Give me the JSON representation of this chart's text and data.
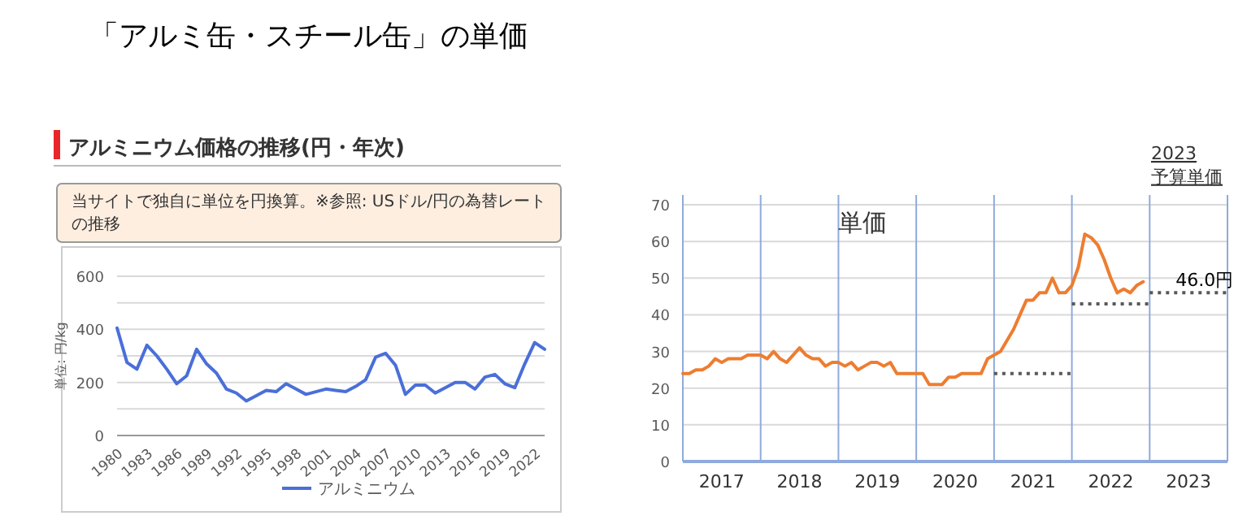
{
  "chart_data": [
    {
      "type": "line",
      "title": "アルミニウム価格の推移(円・年次)",
      "ylabel": "単位: 円/kg",
      "annotations": [
        "「アルミ缶・スチール缶」の単価",
        "当サイトで独自に単位を円換算。※参照: USドル/円の為替レートの推移"
      ],
      "x": [
        1980,
        1981,
        1982,
        1983,
        1984,
        1985,
        1986,
        1987,
        1988,
        1989,
        1990,
        1991,
        1992,
        1993,
        1994,
        1995,
        1996,
        1997,
        1998,
        1999,
        2000,
        2001,
        2002,
        2003,
        2004,
        2005,
        2006,
        2007,
        2008,
        2009,
        2010,
        2011,
        2012,
        2013,
        2014,
        2015,
        2016,
        2017,
        2018,
        2019,
        2020,
        2021,
        2022,
        2023
      ],
      "series": [
        {
          "name": "アルミニウム",
          "color": "#4a6fd8",
          "values": [
            405,
            275,
            250,
            340,
            300,
            250,
            195,
            225,
            325,
            270,
            235,
            175,
            160,
            130,
            150,
            170,
            165,
            195,
            175,
            155,
            165,
            175,
            170,
            165,
            185,
            210,
            295,
            310,
            265,
            155,
            190,
            190,
            160,
            180,
            200,
            200,
            175,
            220,
            230,
            195,
            180,
            270,
            350,
            325
          ]
        }
      ],
      "xlim": [
        1980,
        2023
      ],
      "xticks": [
        1980,
        1983,
        1986,
        1989,
        1992,
        1995,
        1998,
        2001,
        2004,
        2007,
        2010,
        2013,
        2016,
        2019,
        2022
      ],
      "ylim": [
        0,
        600
      ],
      "yticks": [
        0,
        {
          "value": 100,
          "label": null
        },
        200,
        {
          "value": 300,
          "label": null
        },
        400,
        {
          "value": 500,
          "label": null
        },
        600
      ],
      "grid": "y",
      "legend": "bottom",
      "line_style": "solid"
    },
    {
      "type": "line",
      "title": "単価",
      "annotations": [
        "2023\n予算単価",
        {
          "text": "46.0円",
          "x": "2023-04",
          "y": 46
        }
      ],
      "x": [
        "2017-01",
        "2017-02",
        "2017-03",
        "2017-04",
        "2017-05",
        "2017-06",
        "2017-07",
        "2017-08",
        "2017-09",
        "2017-10",
        "2017-11",
        "2017-12",
        "2018-01",
        "2018-02",
        "2018-03",
        "2018-04",
        "2018-05",
        "2018-06",
        "2018-07",
        "2018-08",
        "2018-09",
        "2018-10",
        "2018-11",
        "2018-12",
        "2019-01",
        "2019-02",
        "2019-03",
        "2019-04",
        "2019-05",
        "2019-06",
        "2019-07",
        "2019-08",
        "2019-09",
        "2019-10",
        "2019-11",
        "2019-12",
        "2020-01",
        "2020-02",
        "2020-03",
        "2020-04",
        "2020-05",
        "2020-06",
        "2020-07",
        "2020-08",
        "2020-09",
        "2020-10",
        "2020-11",
        "2020-12",
        "2021-01",
        "2021-02",
        "2021-03",
        "2021-04",
        "2021-05",
        "2021-06",
        "2021-07",
        "2021-08",
        "2021-09",
        "2021-10",
        "2021-11",
        "2021-12",
        "2022-01",
        "2022-02",
        "2022-03",
        "2022-04",
        "2022-05",
        "2022-06",
        "2022-07",
        "2022-08",
        "2022-09",
        "2022-10",
        "2022-11",
        "2022-12"
      ],
      "series": [
        {
          "color": "#ed7d31",
          "values": [
            24,
            24,
            25,
            25,
            26,
            28,
            27,
            28,
            28,
            28,
            29,
            29,
            29,
            28,
            30,
            28,
            27,
            29,
            31,
            29,
            28,
            28,
            26,
            27,
            27,
            26,
            27,
            25,
            26,
            27,
            27,
            26,
            27,
            24,
            24,
            24,
            24,
            24,
            21,
            21,
            21,
            23,
            23,
            24,
            24,
            24,
            24,
            28,
            29,
            30,
            33,
            36,
            40,
            44,
            44,
            46,
            46,
            50,
            46,
            46,
            48,
            53,
            62,
            61,
            59,
            55,
            50,
            46,
            47,
            46,
            48,
            49
          ]
        },
        {
          "color": "#595959",
          "line_style": "dotted",
          "x": [
            "2021-01",
            "2022-01"
          ],
          "values": [
            24,
            24
          ]
        },
        {
          "color": "#595959",
          "line_style": "dotted",
          "x": [
            "2022-01",
            "2023-01"
          ],
          "values": [
            43,
            43
          ]
        },
        {
          "color": "#595959",
          "line_style": "dotted",
          "x": [
            "2023-01",
            "2024-01"
          ],
          "values": [
            46,
            46
          ]
        }
      ],
      "xlim": [
        "2017-01",
        "2024-01"
      ],
      "xticks": [
        {
          "value": "2017-07",
          "label": "2017"
        },
        {
          "value": "2018-07",
          "label": "2018"
        },
        {
          "value": "2019-07",
          "label": "2019"
        },
        {
          "value": "2020-07",
          "label": "2020"
        },
        {
          "value": "2021-07",
          "label": "2021"
        },
        {
          "value": "2022-07",
          "label": "2022"
        },
        {
          "value": "2023-07",
          "label": "2023"
        }
      ],
      "ylim": [
        0,
        70
      ],
      "yticks": [
        0,
        10,
        20,
        30,
        40,
        50,
        60,
        70
      ],
      "ref_lines": [
        {
          "axis": "x",
          "value": "2017-01",
          "color": "#8faadc"
        },
        {
          "axis": "x",
          "value": "2018-01",
          "color": "#8faadc"
        },
        {
          "axis": "x",
          "value": "2019-01",
          "color": "#8faadc"
        },
        {
          "axis": "x",
          "value": "2020-01",
          "color": "#8faadc"
        },
        {
          "axis": "x",
          "value": "2021-01",
          "color": "#8faadc"
        },
        {
          "axis": "x",
          "value": "2022-01",
          "color": "#8faadc"
        },
        {
          "axis": "x",
          "value": "2023-01",
          "color": "#8faadc"
        },
        {
          "axis": "x",
          "value": "2024-01",
          "color": "#8faadc"
        }
      ],
      "grid": "y",
      "line_style": "solid"
    }
  ]
}
